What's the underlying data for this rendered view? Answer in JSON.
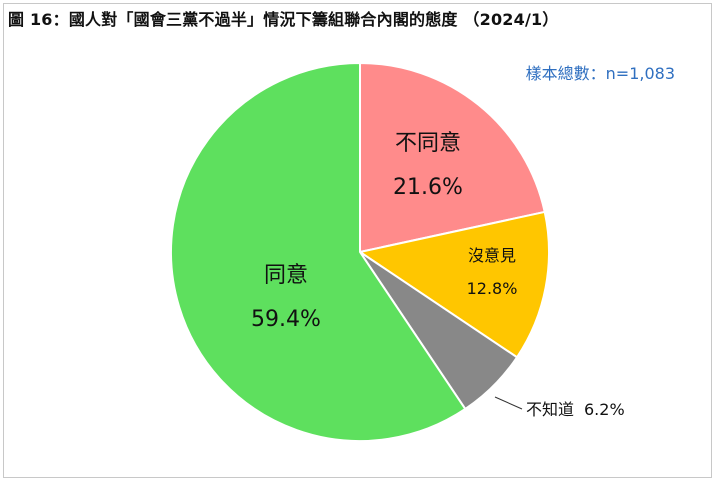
{
  "chart_data": {
    "type": "pie",
    "title": "圖 16：國人對「國會三黨不過半」情況下籌組聯合內閣的態度 （2024/1）",
    "annotation": "樣本總數：n=1,083",
    "slices": [
      {
        "label": "不同意",
        "value": 21.6,
        "value_text": "21.6%",
        "color": "#ff8b8b"
      },
      {
        "label": "沒意見",
        "value": 12.8,
        "value_text": "12.8%",
        "color": "#ffc600"
      },
      {
        "label": "不知道",
        "value": 6.2,
        "value_text": "6.2%",
        "color": "#888888"
      },
      {
        "label": "同意",
        "value": 59.4,
        "value_text": "59.4%",
        "color": "#5ee05e"
      }
    ],
    "start_angle": "12 o'clock",
    "direction": "clockwise"
  }
}
